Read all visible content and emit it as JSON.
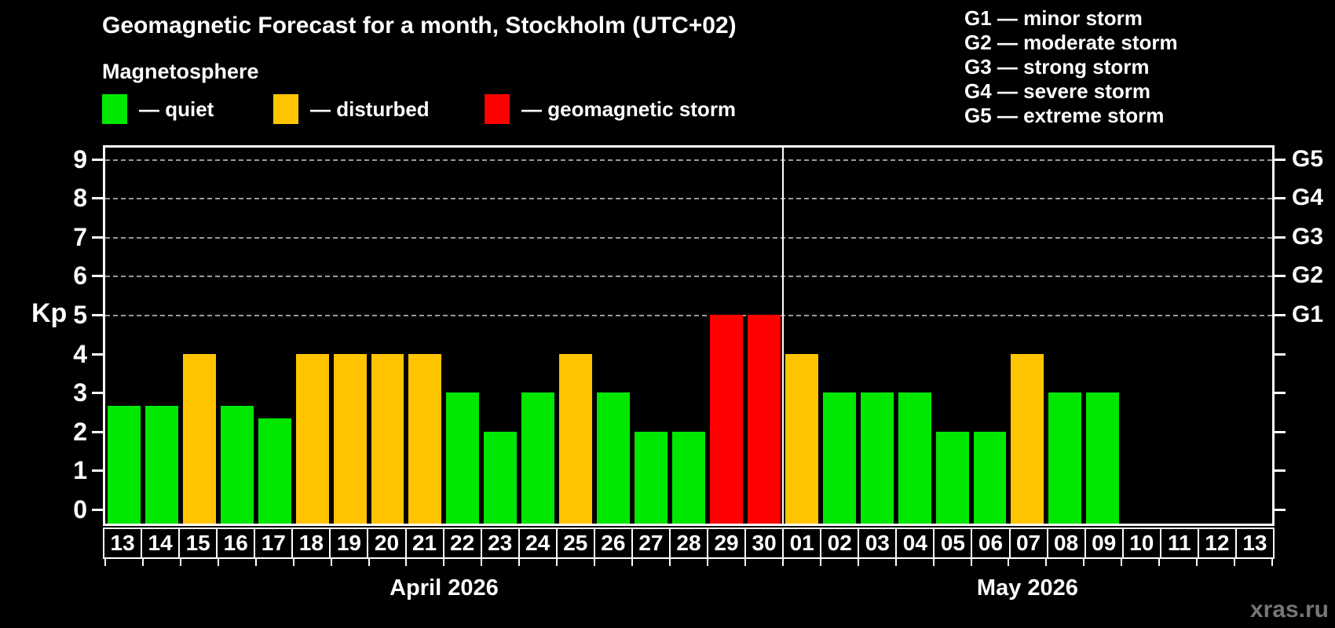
{
  "title": "Geomagnetic Forecast for a month, Stockholm (UTC+02)",
  "subtitle": "Magnetosphere",
  "legend": {
    "items": [
      {
        "key": "quiet",
        "label": "— quiet",
        "color": "#00e800"
      },
      {
        "key": "disturbed",
        "label": "— disturbed",
        "color": "#ffc400"
      },
      {
        "key": "storm",
        "label": "— geomagnetic storm",
        "color": "#ff0000"
      }
    ]
  },
  "g_legend": [
    "G1 — minor storm",
    "G2 — moderate storm",
    "G3 — strong storm",
    "G4 — severe storm",
    "G5 — extreme storm"
  ],
  "axis": {
    "y_label": "Kp",
    "y_ticks": [
      0,
      1,
      2,
      3,
      4,
      5,
      6,
      7,
      8,
      9
    ],
    "gridlines_at": [
      5,
      6,
      7,
      8,
      9
    ],
    "right_tick_levels": [
      0,
      1,
      2,
      3,
      4,
      5,
      6,
      7,
      8,
      9
    ],
    "right_labels": [
      {
        "kp": 5,
        "label": "G1"
      },
      {
        "kp": 6,
        "label": "G2"
      },
      {
        "kp": 7,
        "label": "G3"
      },
      {
        "kp": 8,
        "label": "G4"
      },
      {
        "kp": 9,
        "label": "G5"
      }
    ]
  },
  "watermark": "xras.ru",
  "chart_data": {
    "type": "bar",
    "title": "Geomagnetic Forecast for a month, Stockholm (UTC+02)",
    "xlabel": "",
    "ylabel": "Kp",
    "ylim": [
      0,
      9
    ],
    "grid": "dashed horizontal at Kp 5..9",
    "legend_position": "top-left",
    "months": [
      {
        "label": "April 2026",
        "days": [
          {
            "date": "13",
            "kp": 2.67,
            "status": "quiet"
          },
          {
            "date": "14",
            "kp": 2.67,
            "status": "quiet"
          },
          {
            "date": "15",
            "kp": 4,
            "status": "disturbed"
          },
          {
            "date": "16",
            "kp": 2.67,
            "status": "quiet"
          },
          {
            "date": "17",
            "kp": 2.33,
            "status": "quiet"
          },
          {
            "date": "18",
            "kp": 4,
            "status": "disturbed"
          },
          {
            "date": "19",
            "kp": 4,
            "status": "disturbed"
          },
          {
            "date": "20",
            "kp": 4,
            "status": "disturbed"
          },
          {
            "date": "21",
            "kp": 4,
            "status": "disturbed"
          },
          {
            "date": "22",
            "kp": 3,
            "status": "quiet"
          },
          {
            "date": "23",
            "kp": 2,
            "status": "quiet"
          },
          {
            "date": "24",
            "kp": 3,
            "status": "quiet"
          },
          {
            "date": "25",
            "kp": 4,
            "status": "disturbed"
          },
          {
            "date": "26",
            "kp": 3,
            "status": "quiet"
          },
          {
            "date": "27",
            "kp": 2,
            "status": "quiet"
          },
          {
            "date": "28",
            "kp": 2,
            "status": "quiet"
          },
          {
            "date": "29",
            "kp": 5,
            "status": "storm"
          },
          {
            "date": "30",
            "kp": 5,
            "status": "storm"
          }
        ]
      },
      {
        "label": "May 2026",
        "days": [
          {
            "date": "01",
            "kp": 4,
            "status": "disturbed"
          },
          {
            "date": "02",
            "kp": 3,
            "status": "quiet"
          },
          {
            "date": "03",
            "kp": 3,
            "status": "quiet"
          },
          {
            "date": "04",
            "kp": 3,
            "status": "quiet"
          },
          {
            "date": "05",
            "kp": 2,
            "status": "quiet"
          },
          {
            "date": "06",
            "kp": 2,
            "status": "quiet"
          },
          {
            "date": "07",
            "kp": 4,
            "status": "disturbed"
          },
          {
            "date": "08",
            "kp": 3,
            "status": "quiet"
          },
          {
            "date": "09",
            "kp": 3,
            "status": "quiet"
          },
          {
            "date": "10",
            "kp": null,
            "status": null
          },
          {
            "date": "11",
            "kp": null,
            "status": null
          },
          {
            "date": "12",
            "kp": null,
            "status": null
          },
          {
            "date": "13",
            "kp": null,
            "status": null
          }
        ]
      }
    ]
  }
}
